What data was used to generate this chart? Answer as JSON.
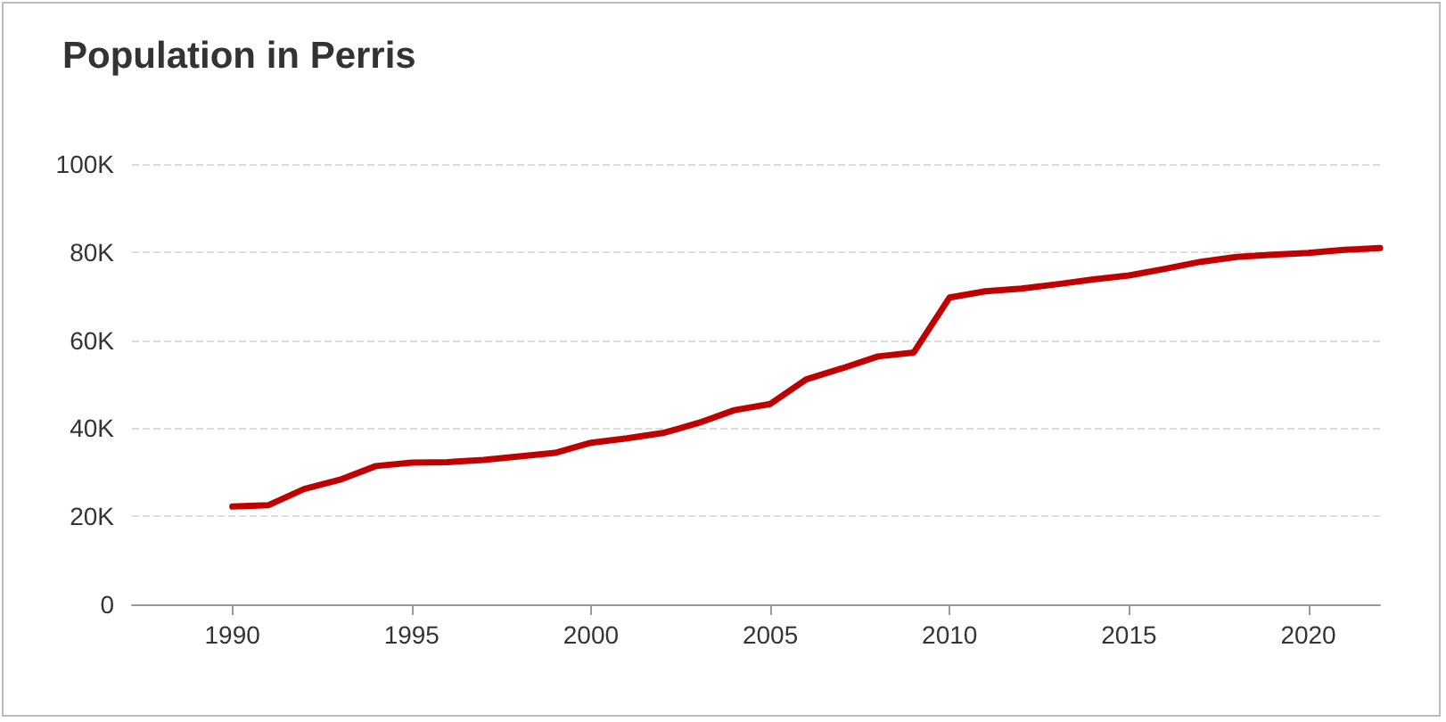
{
  "chart_data": {
    "type": "line",
    "title": "Population in Perris",
    "x": [
      1990,
      1991,
      1992,
      1993,
      1994,
      1995,
      1996,
      1997,
      1998,
      1999,
      2000,
      2001,
      2002,
      2003,
      2004,
      2005,
      2006,
      2007,
      2008,
      2009,
      2010,
      2011,
      2012,
      2013,
      2014,
      2015,
      2016,
      2017,
      2018,
      2019,
      2020,
      2021,
      2022
    ],
    "series": [
      {
        "color": "#c00000",
        "values": [
          22200,
          22500,
          26200,
          28300,
          31400,
          32200,
          32300,
          32800,
          33600,
          34400,
          36700,
          37700,
          38900,
          41200,
          44100,
          45500,
          51100,
          53600,
          56300,
          57200,
          69700,
          71100,
          71700,
          72700,
          73800,
          74700,
          76200,
          77800,
          78900,
          79400,
          79800,
          80500,
          80900
        ]
      }
    ],
    "xlim": [
      1987.2,
      2022
    ],
    "xticks": [
      1990,
      1995,
      2000,
      2005,
      2010,
      2015,
      2020
    ],
    "ylim": [
      0,
      100000
    ],
    "yticks": [
      {
        "value": 0,
        "label": "0"
      },
      {
        "value": 20000,
        "label": "20K"
      },
      {
        "value": 40000,
        "label": "40K"
      },
      {
        "value": 60000,
        "label": "60K"
      },
      {
        "value": 80000,
        "label": "80K"
      },
      {
        "value": 100000,
        "label": "100K"
      }
    ],
    "grid": "y",
    "marker": "none",
    "line_style": "solid"
  }
}
